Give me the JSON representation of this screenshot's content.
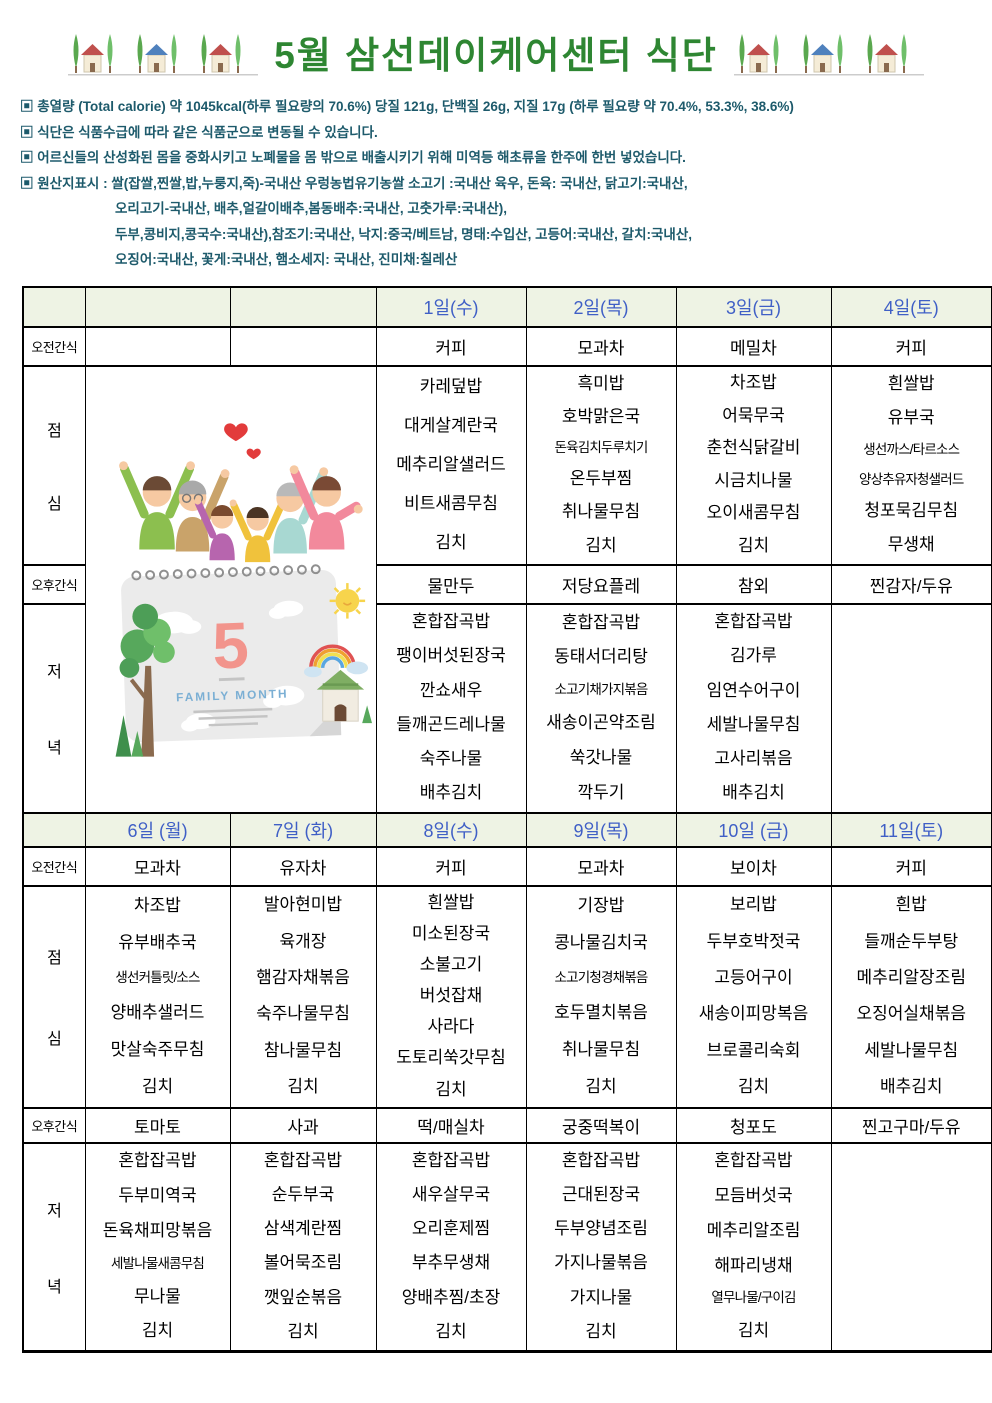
{
  "title": "5월 삼선데이케어센터 식단",
  "colors": {
    "title_green": "#2e8632",
    "day_header_blue": "#3f5fc6",
    "header_row_bg": "#eef3e4",
    "notes_teal": "#1d5a6b",
    "calendar_pink": "#f2948c",
    "family_month_blue": "#7bafd4"
  },
  "notes": [
    "▣ 총열량 (Total calorie) 약 1045kcal(하루 필요량의 70.6%) 당질 121g, 단백질 26g, 지질 17g  (하루 필요량 약 70.4%, 53.3%, 38.6%)",
    "▣ 식단은 식품수급에 따라 같은 식품군으로 변동될 수 있습니다.",
    "▣ 어르신들의 산성화된 몸을 중화시키고 노폐물을 몸 밖으로 배출시키기 위해 미역등 해초류을 한주에 한번 넣었습니다.",
    "▣ 원산지표시 : 쌀(잡쌀,찐쌀,밥,누룽지,죽)-국내산 우렁농법유기농쌀  소고기 :국내산 육우, 돈육: 국내산, 닭고기:국내산,"
  ],
  "notes_continuation": [
    "오리고기-국내산,  배추,얼갈이배추,봄동배추:국내산, 고춧가루:국내산),",
    "두부,콩비지,콩국수:국내산),참조기:국내산, 낙지:중국/베트남, 명태:수입산, 고등어:국내산, 갈치:국내산,",
    "오징어:국내산, 꽃게:국내산, 햄소세지: 국내산, 진미채:칠레산"
  ],
  "calendar_graphic": {
    "month": "5",
    "caption": "FAMILY MONTH"
  },
  "table": {
    "row_labels": {
      "morning_snack": "오전간식",
      "lunch": [
        "점",
        "심"
      ],
      "afternoon_snack": "오후간식",
      "dinner": [
        "저",
        "녁"
      ]
    },
    "week1": {
      "days": [
        "1일(수)",
        "2일(목)",
        "3일(금)",
        "4일(토)"
      ],
      "morning_snack": [
        "커피",
        "모과차",
        "메밀차",
        "커피"
      ],
      "lunch": [
        [
          "카레덮밥",
          "대게살계란국",
          "메추리알샐러드",
          "비트새콤무침",
          "김치"
        ],
        [
          "흑미밥",
          "호박맑은국",
          "돈육김치두루치기",
          "온두부찜",
          "취나물무침",
          "김치"
        ],
        [
          "차조밥",
          "어묵무국",
          "춘천식닭갈비",
          "시금치나물",
          "오이새콤무침",
          "김치"
        ],
        [
          "흰쌀밥",
          "유부국",
          "생선까스/타르소스",
          "양상추유자청샐러드",
          "청포묵김무침",
          "무생채"
        ]
      ],
      "afternoon_snack": [
        "물만두",
        "저당요플레",
        "참외",
        "찐감자/두유"
      ],
      "dinner": [
        [
          "혼합잡곡밥",
          "팽이버섯된장국",
          "깐쇼새우",
          "들깨곤드레나물",
          "숙주나물",
          "배추김치"
        ],
        [
          "혼합잡곡밥",
          "동태서더리탕",
          "소고기채가지볶음",
          "새송이곤약조림",
          "쑥갓나물",
          "깍두기"
        ],
        [
          "혼합잡곡밥",
          "김가루",
          "임연수어구이",
          "세발나물무침",
          "고사리볶음",
          "배추김치"
        ],
        []
      ]
    },
    "week2": {
      "days": [
        "6일 (월)",
        "7일 (화)",
        "8일(수)",
        "9일(목)",
        "10일 (금)",
        "11일(토)"
      ],
      "morning_snack": [
        "모과차",
        "유자차",
        "커피",
        "모과차",
        "보이차",
        "커피"
      ],
      "lunch": [
        [
          "차조밥",
          "유부배추국",
          "생선커틀릿/소스",
          "양배추샐러드",
          "맛살숙주무침",
          "김치"
        ],
        [
          "발아현미밥",
          "육개장",
          "햄감자채볶음",
          "숙주나물무침",
          "참나물무침",
          "김치"
        ],
        [
          "흰쌀밥",
          "미소된장국",
          "소불고기",
          "버섯잡채",
          "사라다",
          "도토리쑥갓무침",
          "김치"
        ],
        [
          "기장밥",
          "콩나물김치국",
          "소고기청경채볶음",
          "호두멸치볶음",
          "취나물무침",
          "김치"
        ],
        [
          "보리밥",
          "두부호박젓국",
          "고등어구이",
          "새송이피망복음",
          "브로콜리숙회",
          "김치"
        ],
        [
          "흰밥",
          "들깨순두부탕",
          "메추리알장조림",
          "오징어실채볶음",
          "세발나물무침",
          "배추김치"
        ]
      ],
      "afternoon_snack": [
        "토마토",
        "사과",
        "떡/매실차",
        "궁중떡복이",
        "청포도",
        "찐고구마/두유"
      ],
      "dinner": [
        [
          "혼합잡곡밥",
          "두부미역국",
          "돈육채피망볶음",
          "세발나물새콤무침",
          "무나물",
          "김치"
        ],
        [
          "혼합잡곡밥",
          "순두부국",
          "삼색계란찜",
          "볼어묵조림",
          "깻잎순볶음",
          "김치"
        ],
        [
          "혼합잡곡밥",
          "새우살무국",
          "오리훈제찜",
          "부추무생채",
          "양배추찜/초장",
          "김치"
        ],
        [
          "혼합잡곡밥",
          "근대된장국",
          "두부양념조림",
          "가지나물볶음",
          "가지나물",
          "김치"
        ],
        [
          "혼합잡곡밥",
          "모듬버섯국",
          "메추리알조림",
          "해파리냉채",
          "열무나물/구이김",
          "김치"
        ],
        []
      ]
    }
  }
}
